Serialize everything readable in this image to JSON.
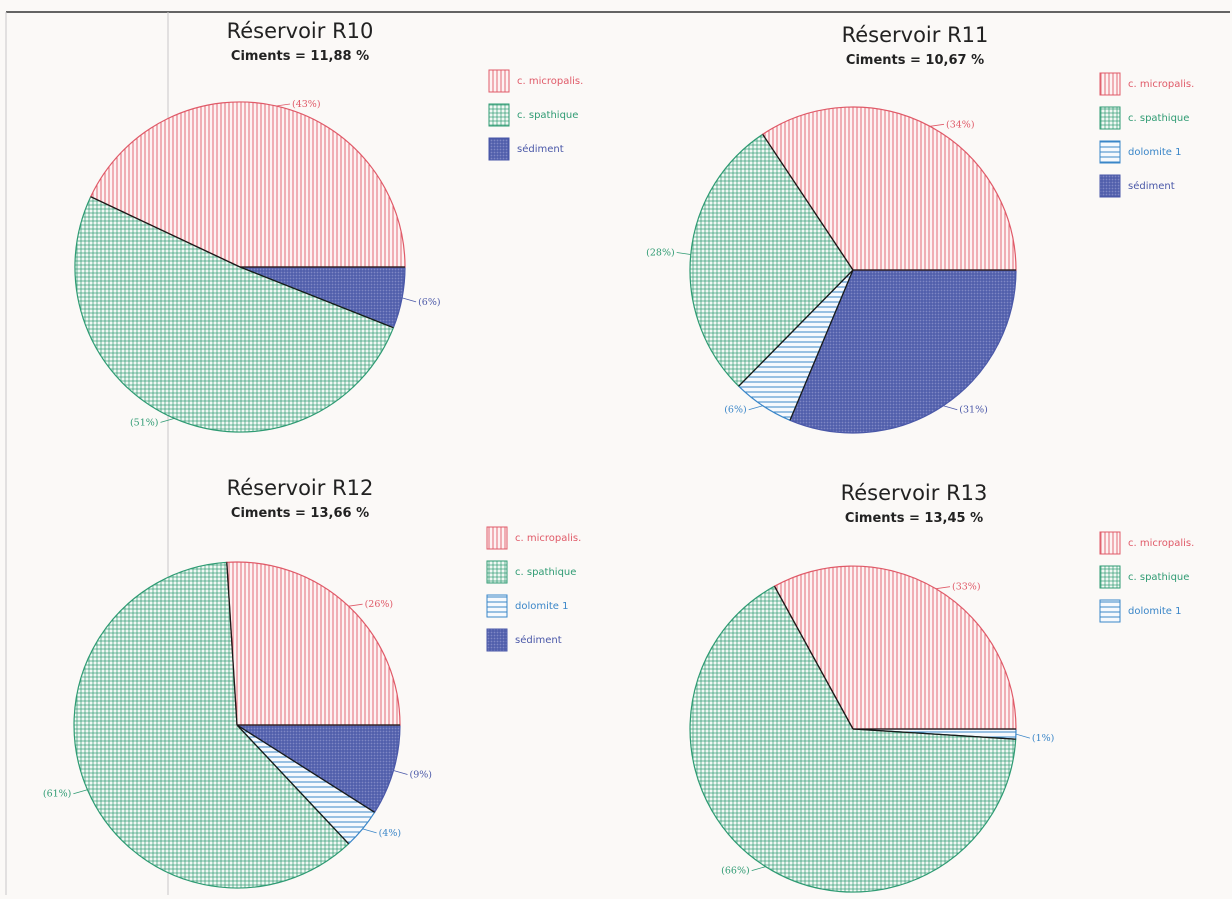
{
  "colors": {
    "micropalis": "#e05a68",
    "spathique": "#2f9b73",
    "dolomite": "#3a86c8",
    "sediment": "#4a58a8",
    "divider": "#1a1a1a"
  },
  "chart_data": [
    {
      "type": "pie",
      "title": "Réservoir R10",
      "subtitle": "Ciments = 11,88 %",
      "legend": [
        "c. micropalis.",
        "c. spathique",
        "sédiment"
      ],
      "slices": [
        {
          "category": "c. micropalis.",
          "value": 43,
          "label": "(43%)"
        },
        {
          "category": "c. spathique",
          "value": 51,
          "label": "(51%)"
        },
        {
          "category": "sédiment",
          "value": 6,
          "label": "(6%)"
        }
      ]
    },
    {
      "type": "pie",
      "title": "Réservoir R11",
      "subtitle": "Ciments = 10,67 %",
      "legend": [
        "c. micropalis.",
        "c. spathique",
        "dolomite 1",
        "sédiment"
      ],
      "slices": [
        {
          "category": "c. micropalis.",
          "value": 34,
          "label": "(34%)"
        },
        {
          "category": "c. spathique",
          "value": 28,
          "label": "(28%)"
        },
        {
          "category": "dolomite 1",
          "value": 6,
          "label": "(6%)"
        },
        {
          "category": "sédiment",
          "value": 31,
          "label": "(31%)"
        }
      ]
    },
    {
      "type": "pie",
      "title": "Réservoir R12",
      "subtitle": "Ciments = 13,66 %",
      "legend": [
        "c. micropalis.",
        "c. spathique",
        "dolomite 1",
        "sédiment"
      ],
      "slices": [
        {
          "category": "c. micropalis.",
          "value": 26,
          "label": "(26%)"
        },
        {
          "category": "c. spathique",
          "value": 61,
          "label": "(61%)"
        },
        {
          "category": "dolomite 1",
          "value": 4,
          "label": "(4%)"
        },
        {
          "category": "sédiment",
          "value": 9,
          "label": "(9%)"
        }
      ]
    },
    {
      "type": "pie",
      "title": "Réservoir R13",
      "subtitle": "Ciments = 13,45 %",
      "legend": [
        "c. micropalis.",
        "c. spathique",
        "dolomite 1"
      ],
      "slices": [
        {
          "category": "c. micropalis.",
          "value": 33,
          "label": "(33%)"
        },
        {
          "category": "c. spathique",
          "value": 66,
          "label": "(66%)"
        },
        {
          "category": "dolomite 1",
          "value": 1,
          "label": "(1%)"
        }
      ]
    }
  ]
}
